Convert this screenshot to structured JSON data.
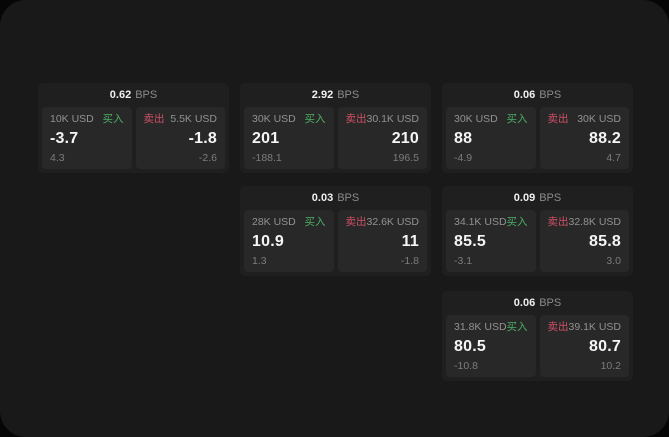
{
  "colors": {
    "buy_green": "#4caf67",
    "sell_red": "#d05066",
    "frame_bg": "#191919",
    "card_bg": "#1f1f1f",
    "tile_bg": "#282828"
  },
  "cards": [
    {
      "spread": "0.62",
      "unit": "BPS",
      "buy": {
        "size": "10K USD",
        "label": "买入",
        "price": "-3.7",
        "delta": "4.3"
      },
      "sell": {
        "label": "卖出",
        "size": "5.5K USD",
        "price": "-1.8",
        "delta": "-2.6"
      }
    },
    {
      "spread": "2.92",
      "unit": "BPS",
      "buy": {
        "size": "30K USD",
        "label": "买入",
        "price": "201",
        "delta": "-188.1"
      },
      "sell": {
        "label": "卖出",
        "size": "30.1K USD",
        "price": "210",
        "delta": "196.5"
      }
    },
    {
      "spread": "0.06",
      "unit": "BPS",
      "buy": {
        "size": "30K USD",
        "label": "买入",
        "price": "88",
        "delta": "-4.9"
      },
      "sell": {
        "label": "卖出",
        "size": "30K USD",
        "price": "88.2",
        "delta": "4.7"
      }
    },
    {
      "spread": "0.03",
      "unit": "BPS",
      "buy": {
        "size": "28K USD",
        "label": "买入",
        "price": "10.9",
        "delta": "1.3"
      },
      "sell": {
        "label": "卖出",
        "size": "32.6K USD",
        "price": "11",
        "delta": "-1.8"
      }
    },
    {
      "spread": "0.09",
      "unit": "BPS",
      "buy": {
        "size": "34.1K USD",
        "label": "买入",
        "price": "85.5",
        "delta": "-3.1"
      },
      "sell": {
        "label": "卖出",
        "size": "32.8K USD",
        "price": "85.8",
        "delta": "3.0"
      }
    },
    {
      "spread": "0.06",
      "unit": "BPS",
      "buy": {
        "size": "31.8K USD",
        "label": "买入",
        "price": "80.5",
        "delta": "-10.8"
      },
      "sell": {
        "label": "卖出",
        "size": "39.1K USD",
        "price": "80.7",
        "delta": "10.2"
      }
    }
  ]
}
